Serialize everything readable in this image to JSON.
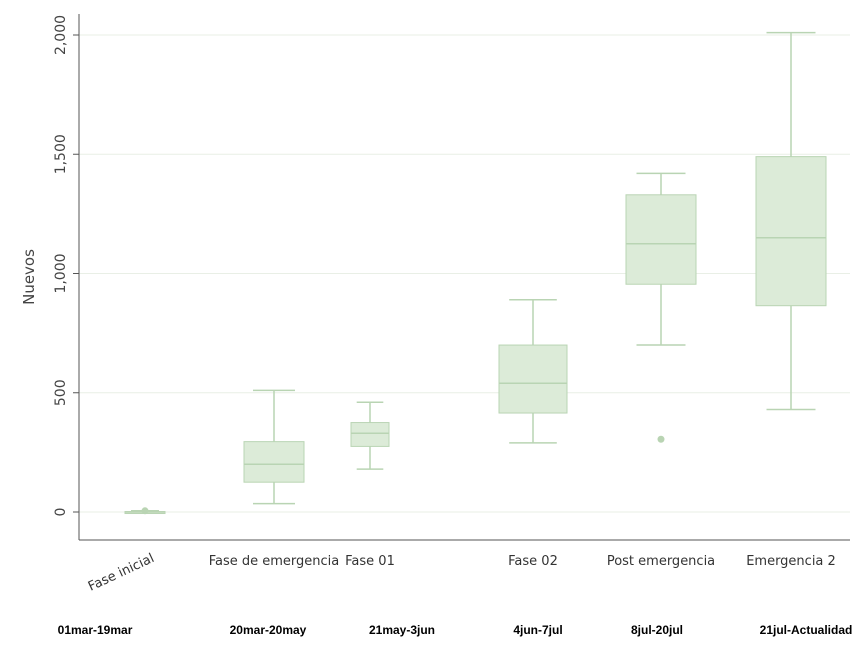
{
  "chart_data": {
    "type": "box",
    "title": "",
    "xlabel": "",
    "ylabel": "Nuevos",
    "ylim": [
      -50,
      2080
    ],
    "yticks": [
      0,
      500,
      1000,
      1500,
      2000
    ],
    "ytick_labels": [
      "0",
      "500",
      "1,000",
      "1,500",
      "2,000"
    ],
    "grid": true,
    "colors": {
      "box_fill": "#dcebd8",
      "box_line": "#b9d4b3",
      "grid": "#e9efe6",
      "axis": "#555555"
    },
    "categories": [
      "Fase inicial",
      "Fase de emergencia",
      "Fase 01",
      "Fase 02",
      "Post emergencia",
      "Emergencia 2"
    ],
    "periods": [
      "01mar-19mar",
      "20mar-20may",
      "21may-3jun",
      "4jun-7jul",
      "8jul-20jul",
      "21jul-Actualidad"
    ],
    "boxes": [
      {
        "min": 0,
        "q1": 0,
        "median": 0,
        "q3": 2,
        "max": 5,
        "outliers": [
          5
        ]
      },
      {
        "min": 35,
        "q1": 125,
        "median": 200,
        "q3": 295,
        "max": 510,
        "outliers": []
      },
      {
        "min": 180,
        "q1": 275,
        "median": 330,
        "q3": 375,
        "max": 460,
        "outliers": []
      },
      {
        "min": 290,
        "q1": 415,
        "median": 540,
        "q3": 700,
        "max": 890,
        "outliers": []
      },
      {
        "min": 700,
        "q1": 955,
        "median": 1125,
        "q3": 1330,
        "max": 1420,
        "outliers": [
          305
        ]
      },
      {
        "min": 430,
        "q1": 865,
        "median": 1150,
        "q3": 1490,
        "max": 2010,
        "outliers": []
      }
    ]
  }
}
